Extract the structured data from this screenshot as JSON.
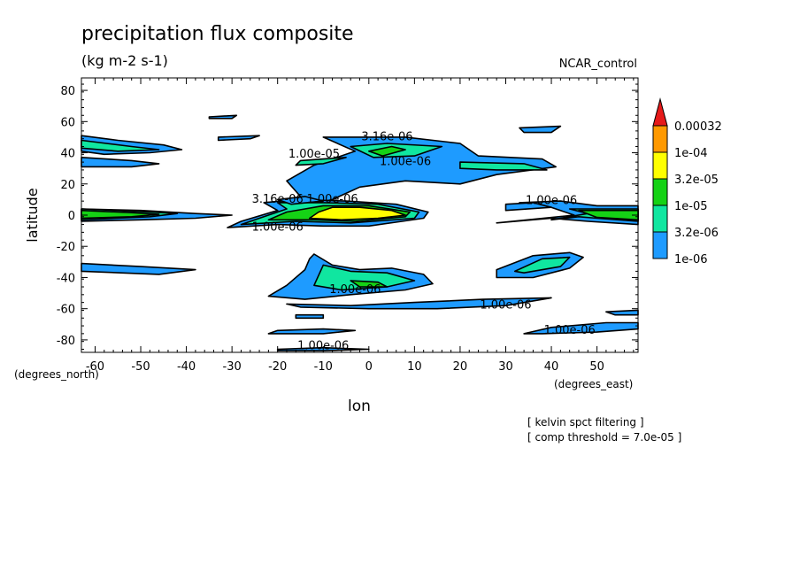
{
  "header": {
    "title": "precipitation flux composite",
    "units": "(kg m-2 s-1)",
    "dataset": "NCAR_control"
  },
  "chart_data": {
    "type": "contour",
    "title": "precipitation flux composite",
    "subtitle": "(kg m-2 s-1)",
    "dataset": "NCAR_control",
    "xlabel": "lon",
    "ylabel": "latitude",
    "xunits": "(degrees_east)",
    "yunits": "(degrees_north)",
    "xlim": [
      -63,
      59
    ],
    "ylim": [
      -88,
      88
    ],
    "xticks": [
      -60,
      -50,
      -40,
      -30,
      -20,
      -10,
      0,
      10,
      20,
      30,
      40,
      50
    ],
    "yticks": [
      80,
      60,
      40,
      20,
      0,
      -20,
      -40,
      -60,
      -80
    ],
    "grid": false,
    "levels": [
      {
        "label": "1e-06",
        "color": "#1e9bff"
      },
      {
        "label": "3.2e-06",
        "color": "#10e6a0"
      },
      {
        "label": "1e-05",
        "color": "#15d215"
      },
      {
        "label": "3.2e-05",
        "color": "#ffff00"
      },
      {
        "label": "1e-04",
        "color": "#ff9900"
      },
      {
        "label": "0.00032",
        "color": "#e61a1a"
      }
    ],
    "contour_labels": [
      {
        "text": "3.16e-06",
        "lon": 4,
        "lat": 48
      },
      {
        "text": "1.00e-05",
        "lon": -12,
        "lat": 37
      },
      {
        "text": "1.00e-06",
        "lon": 8,
        "lat": 32
      },
      {
        "text": "3.16e-06",
        "lon": -20,
        "lat": 8
      },
      {
        "text": "1.00e-06",
        "lon": -8,
        "lat": 8
      },
      {
        "text": "1.00e-06",
        "lon": -20,
        "lat": -10
      },
      {
        "text": "1.00e-06",
        "lon": 40,
        "lat": 7
      },
      {
        "text": "1.00e-06",
        "lon": -3,
        "lat": -50
      },
      {
        "text": "1.00e-06",
        "lon": 30,
        "lat": -60
      },
      {
        "text": "1.00e-06",
        "lon": 44,
        "lat": -76
      },
      {
        "text": "1.00e-06",
        "lon": -10,
        "lat": -86
      }
    ],
    "notes": [
      "[ kelvin spct filtering ]",
      "[ comp threshold = 7.0e-05 ]"
    ]
  }
}
